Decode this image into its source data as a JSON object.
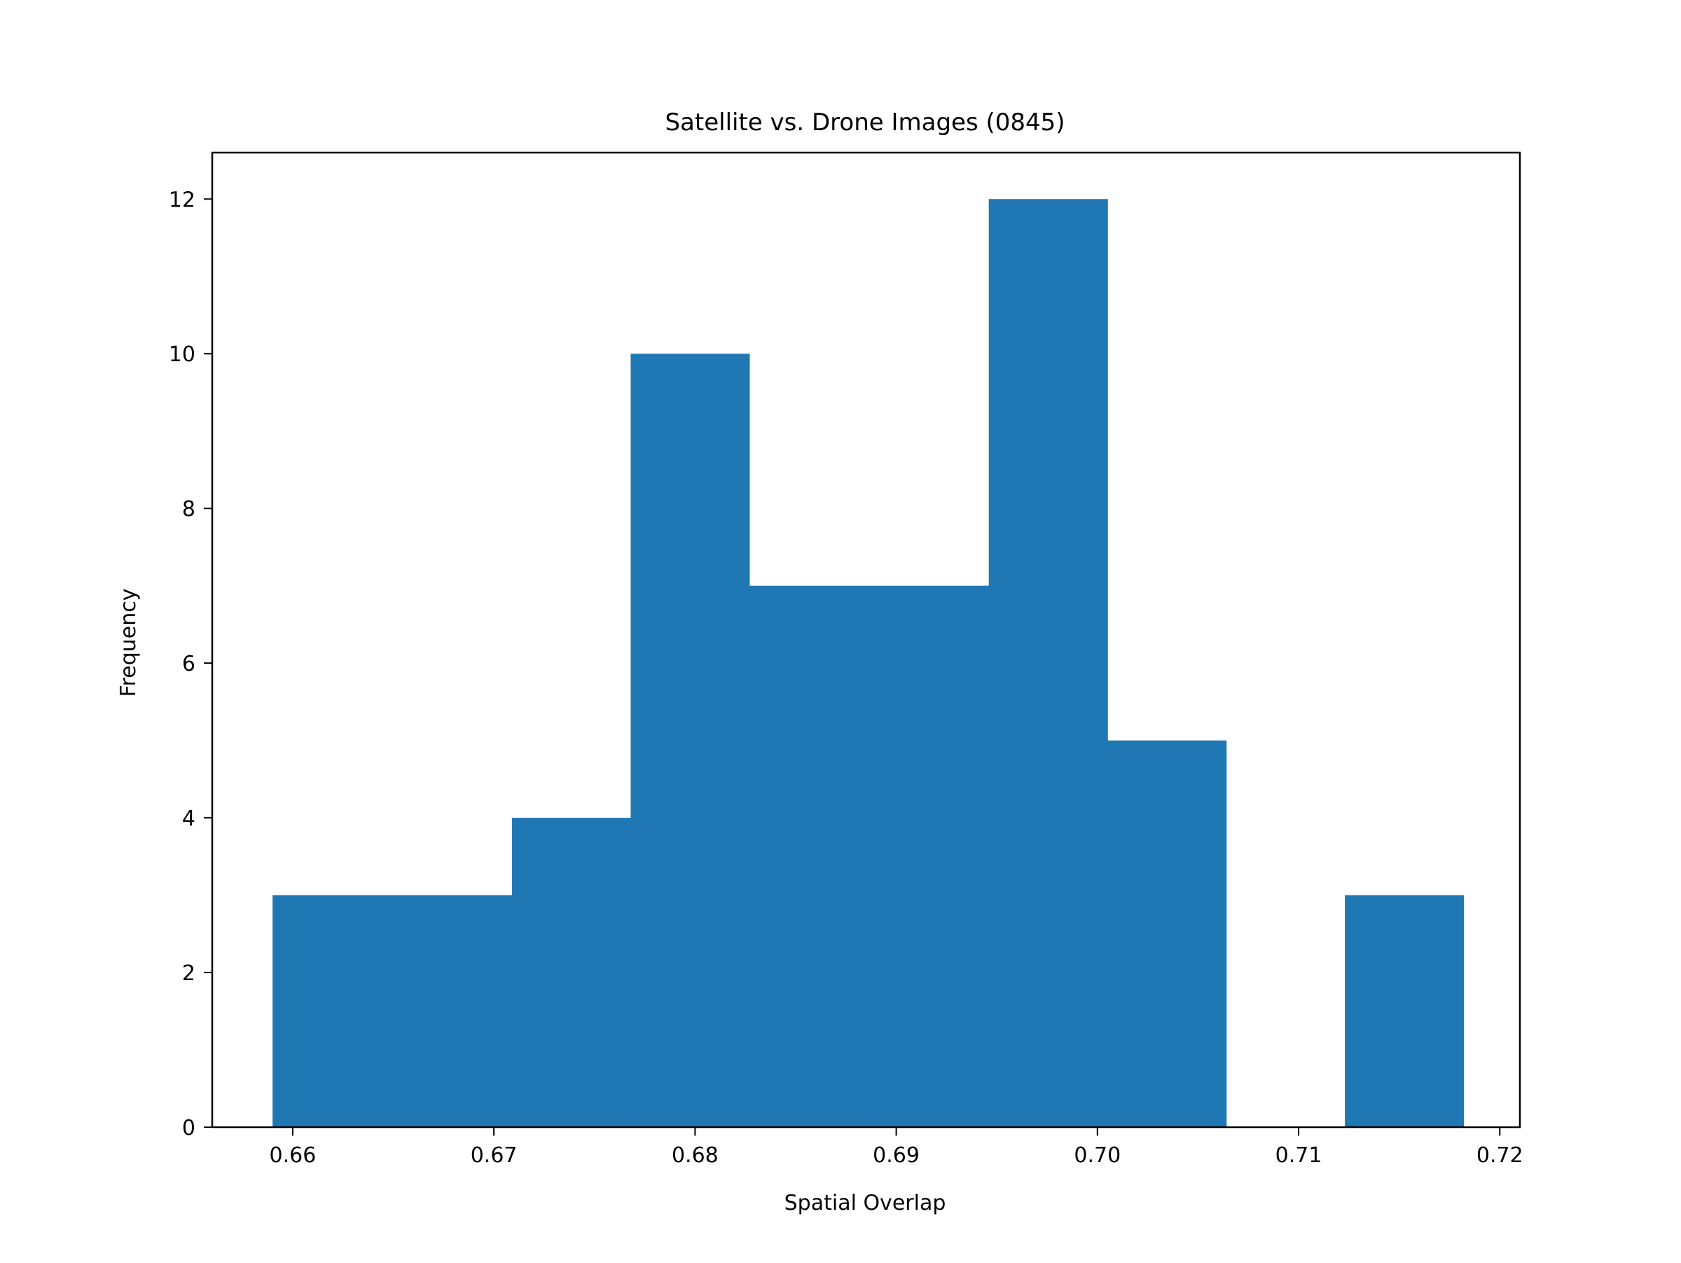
{
  "chart_data": {
    "type": "bar",
    "title": "Satellite vs. Drone Images (0845)",
    "xlabel": "Spatial Overlap",
    "ylabel": "Frequency",
    "xlim": [
      0.656,
      0.721
    ],
    "ylim": [
      0,
      12.6
    ],
    "bar_color": "#1f77b4",
    "x_ticks": [
      0.66,
      0.67,
      0.68,
      0.69,
      0.7,
      0.71,
      0.72
    ],
    "x_tick_labels": [
      "0.66",
      "0.67",
      "0.68",
      "0.69",
      "0.70",
      "0.71",
      "0.72"
    ],
    "y_ticks": [
      0,
      2,
      4,
      6,
      8,
      10,
      12
    ],
    "y_tick_labels": [
      "0",
      "2",
      "4",
      "6",
      "8",
      "10",
      "12"
    ],
    "bins": [
      {
        "x0": 0.659,
        "x1": 0.665,
        "value": 3
      },
      {
        "x0": 0.665,
        "x1": 0.6709,
        "value": 3
      },
      {
        "x0": 0.6709,
        "x1": 0.6768,
        "value": 4
      },
      {
        "x0": 0.6768,
        "x1": 0.6827,
        "value": 10
      },
      {
        "x0": 0.6827,
        "x1": 0.6886,
        "value": 7
      },
      {
        "x0": 0.6886,
        "x1": 0.6946,
        "value": 7
      },
      {
        "x0": 0.6946,
        "x1": 0.7005,
        "value": 12
      },
      {
        "x0": 0.7005,
        "x1": 0.7064,
        "value": 5
      },
      {
        "x0": 0.7064,
        "x1": 0.7123,
        "value": 0
      },
      {
        "x0": 0.7123,
        "x1": 0.7182,
        "value": 3
      }
    ]
  }
}
